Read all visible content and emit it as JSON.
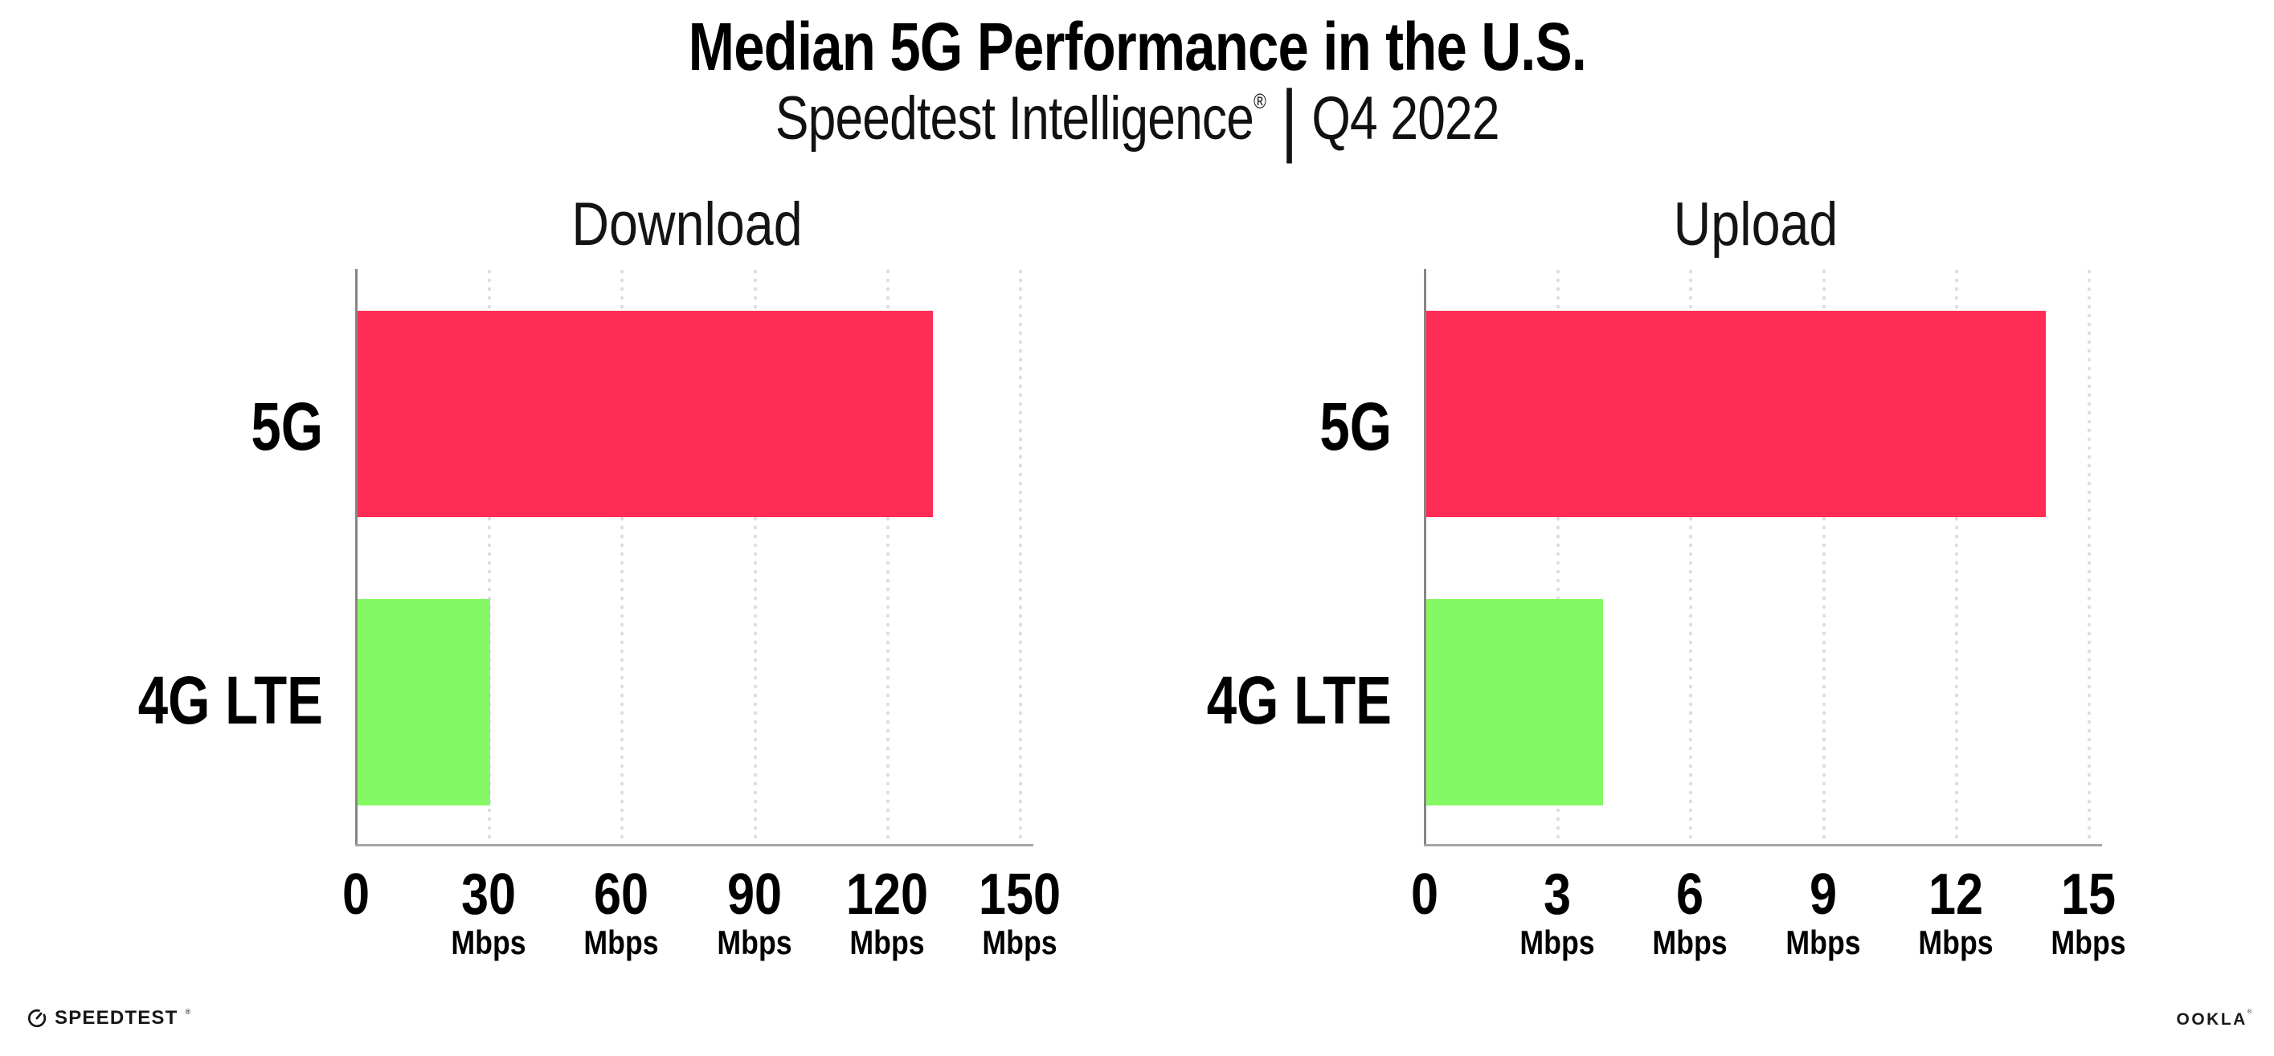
{
  "page": {
    "background": "#ffffff"
  },
  "header": {
    "title": "Median 5G Performance in the U.S.",
    "subtitle": {
      "product": "Speedtest Intelligence",
      "trademark": "®",
      "separator": "|",
      "period": "Q4 2022"
    }
  },
  "chart_data": [
    {
      "type": "bar",
      "orientation": "horizontal",
      "title": "Download",
      "categories": [
        "5G",
        "4G LTE"
      ],
      "values": [
        130,
        30
      ],
      "unit": "Mbps",
      "xlim": [
        0,
        150
      ],
      "xticks": [
        0,
        30,
        60,
        90,
        120,
        150
      ],
      "bar_colors": [
        "#FF2D55",
        "#85F963"
      ],
      "grid": "dotted-vertical",
      "legend": "none"
    },
    {
      "type": "bar",
      "orientation": "horizontal",
      "title": "Upload",
      "categories": [
        "5G",
        "4G LTE"
      ],
      "values": [
        14,
        4
      ],
      "unit": "Mbps",
      "xlim": [
        0,
        15
      ],
      "xticks": [
        0,
        3,
        6,
        9,
        12,
        15
      ],
      "bar_colors": [
        "#FF2D55",
        "#85F963"
      ],
      "grid": "dotted-vertical",
      "legend": "none"
    }
  ],
  "footer": {
    "speedtest": {
      "icon": "speedtest-gauge-icon",
      "text": "SPEEDTEST",
      "mark": "®"
    },
    "ookla": {
      "text": "OOKLA",
      "mark": "®"
    }
  },
  "colors": {
    "bar_5g": "#FF2D55",
    "bar_4g_lte": "#85F963",
    "gridline_dots": "#DEDCE8",
    "y_axis_line": "#868686",
    "x_axis_line": "#A6A6A6",
    "text": "#000000"
  }
}
